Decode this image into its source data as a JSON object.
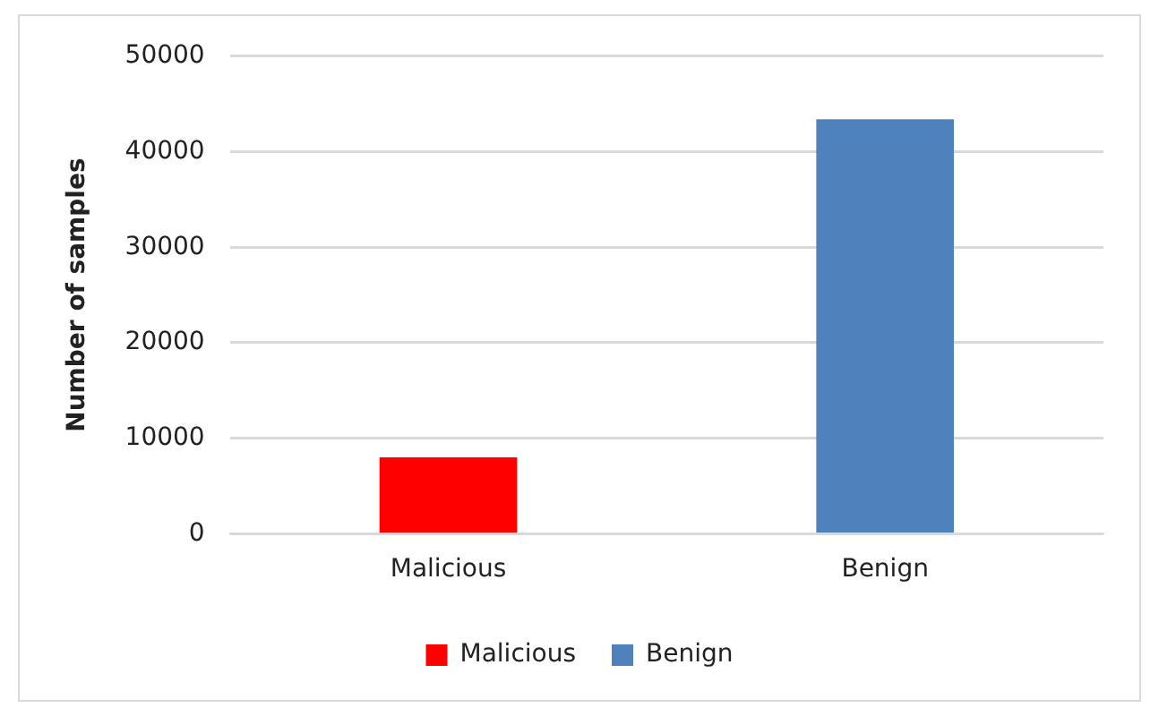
{
  "chart_data": {
    "type": "bar",
    "ylabel": "Number of samples",
    "categories": [
      "Malicious",
      "Benign"
    ],
    "series": [
      {
        "name": "Malicious",
        "color": "#ff0000",
        "values": [
          8000,
          null
        ]
      },
      {
        "name": "Benign",
        "color": "#4f81bd",
        "values": [
          null,
          43400
        ]
      }
    ],
    "ylim": [
      0,
      50000
    ],
    "yticks": [
      0,
      10000,
      20000,
      30000,
      40000,
      50000
    ],
    "grid": "y",
    "legend": "bottom"
  }
}
